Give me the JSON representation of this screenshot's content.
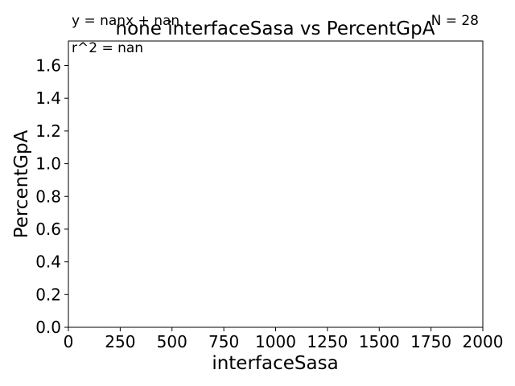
{
  "chart_data": {
    "type": "scatter",
    "title": "none interfaceSasa vs PercentGpA",
    "xlabel": "interfaceSasa",
    "ylabel": "PercentGpA",
    "xlim": [
      0,
      2000
    ],
    "ylim": [
      0,
      1.75
    ],
    "x_ticks": [
      0,
      250,
      500,
      750,
      1000,
      1250,
      1500,
      1750,
      2000
    ],
    "x_tick_labels": [
      "0",
      "250",
      "500",
      "750",
      "1000",
      "1250",
      "1500",
      "1750",
      "2000"
    ],
    "y_ticks": [
      0.0,
      0.2,
      0.4,
      0.6,
      0.8,
      1.0,
      1.2,
      1.4,
      1.6
    ],
    "y_tick_labels": [
      "0.0",
      "0.2",
      "0.4",
      "0.6",
      "0.8",
      "1.0",
      "1.2",
      "1.4",
      "1.6"
    ],
    "series": [
      {
        "x": [],
        "y": []
      }
    ],
    "grid": false,
    "annotations": {
      "equation": "y = nanx + nan",
      "r_squared": "r^2 = nan",
      "n_count": "N = 28"
    }
  }
}
